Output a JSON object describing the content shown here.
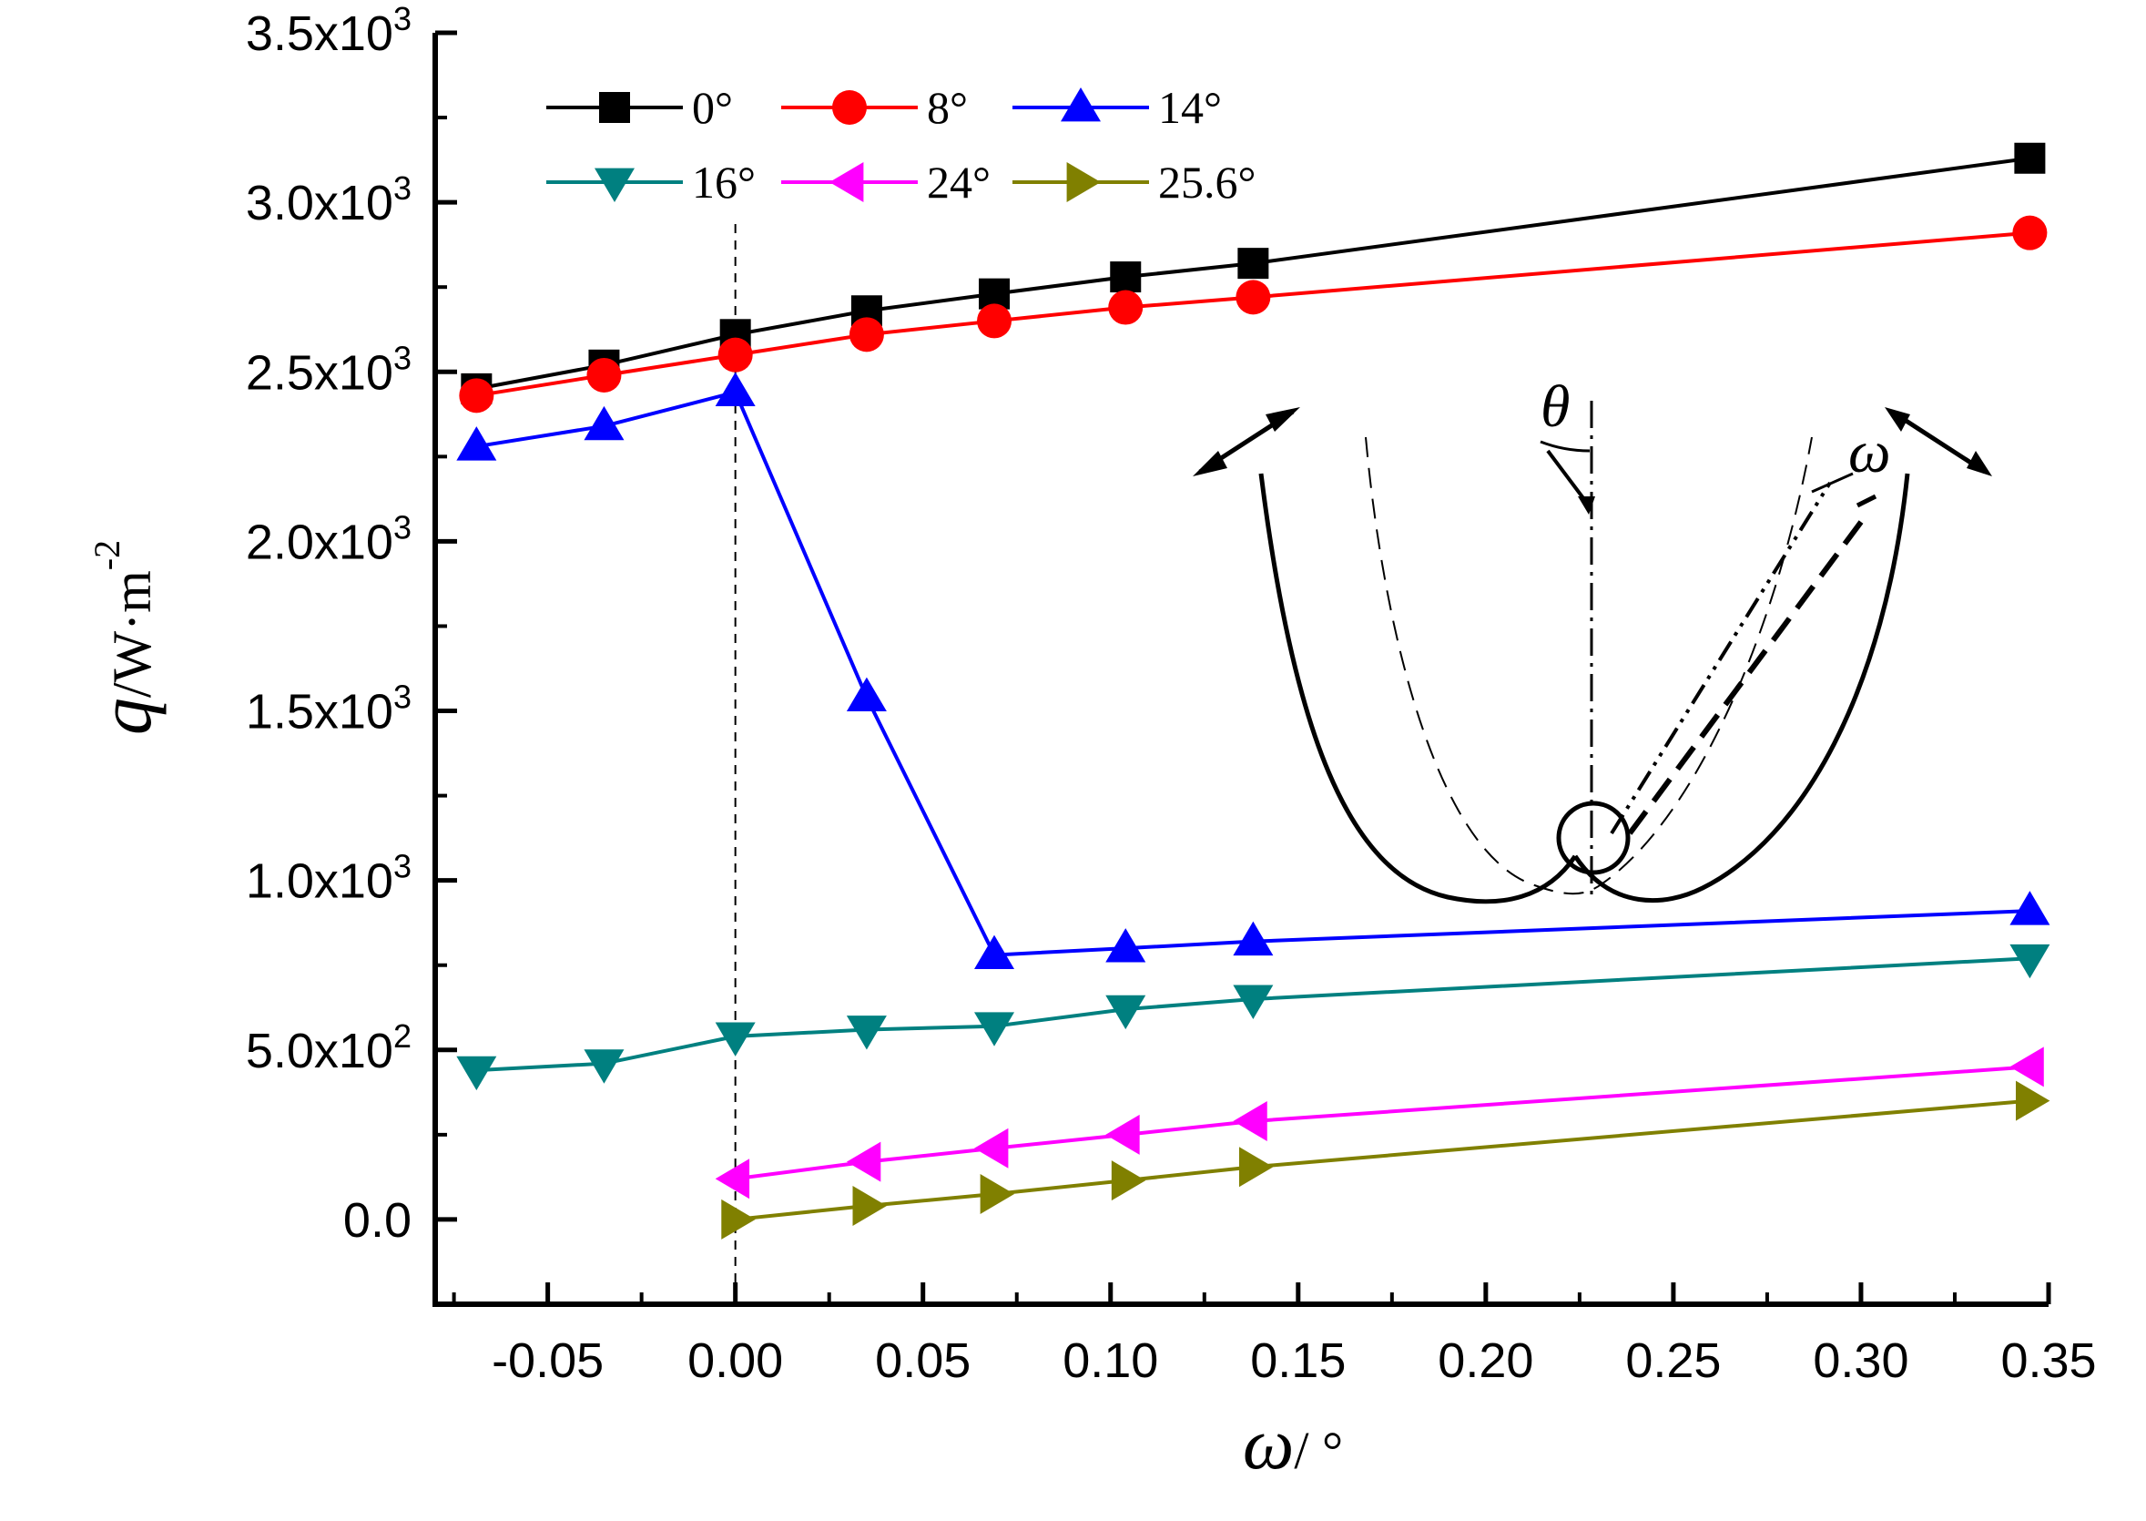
{
  "chart_data": {
    "type": "line",
    "title": "",
    "xlabel": "ω/ °",
    "ylabel": "q/W·m-2",
    "xlim": [
      -0.08,
      0.35
    ],
    "ylim": [
      -250,
      3500
    ],
    "x_ticks": [
      -0.05,
      0.0,
      0.05,
      0.1,
      0.15,
      0.2,
      0.25,
      0.3,
      0.35
    ],
    "x_tick_labels": [
      "-0.05",
      "0.00",
      "0.05",
      "0.10",
      "0.15",
      "0.20",
      "0.25",
      "0.30",
      "0.35"
    ],
    "y_ticks": [
      0,
      500,
      1000,
      1500,
      2000,
      2500,
      3000,
      3500
    ],
    "y_tick_labels": [
      {
        "mantissa": "0.0",
        "exp": ""
      },
      {
        "mantissa": "5.0x10",
        "exp": "2"
      },
      {
        "mantissa": "1.0x10",
        "exp": "3"
      },
      {
        "mantissa": "1.5x10",
        "exp": "3"
      },
      {
        "mantissa": "2.0x10",
        "exp": "3"
      },
      {
        "mantissa": "2.5x10",
        "exp": "3"
      },
      {
        "mantissa": "3.0x10",
        "exp": "3"
      },
      {
        "mantissa": "3.5x10",
        "exp": "3"
      }
    ],
    "reference_line_x": 0.0,
    "legend_position": "top-left",
    "series": [
      {
        "name": "0°",
        "color": "#000000",
        "marker": "square",
        "x": [
          -0.069,
          -0.035,
          0.0,
          0.035,
          0.069,
          0.104,
          0.138,
          0.345
        ],
        "y": [
          2450,
          2520,
          2610,
          2680,
          2730,
          2780,
          2820,
          3130
        ]
      },
      {
        "name": "8°",
        "color": "#ff0000",
        "marker": "circle",
        "x": [
          -0.069,
          -0.035,
          0.0,
          0.035,
          0.069,
          0.104,
          0.138,
          0.345
        ],
        "y": [
          2430,
          2490,
          2550,
          2610,
          2650,
          2690,
          2720,
          2910
        ]
      },
      {
        "name": "14°",
        "color": "#0000ff",
        "marker": "triangle-up",
        "x": [
          -0.069,
          -0.035,
          0.0,
          0.035,
          0.069,
          0.104,
          0.138,
          0.345
        ],
        "y": [
          2280,
          2340,
          2440,
          1540,
          780,
          800,
          820,
          910
        ]
      },
      {
        "name": "16°",
        "color": "#008080",
        "marker": "triangle-down",
        "x": [
          -0.069,
          -0.035,
          0.0,
          0.035,
          0.069,
          0.104,
          0.138,
          0.345
        ],
        "y": [
          440,
          460,
          540,
          560,
          570,
          620,
          650,
          770
        ]
      },
      {
        "name": "24°",
        "color": "#ff00ff",
        "marker": "triangle-left",
        "x": [
          0.0,
          0.035,
          0.069,
          0.104,
          0.138,
          0.345
        ],
        "y": [
          120,
          170,
          210,
          250,
          290,
          450
        ]
      },
      {
        "name": "25.6°",
        "color": "#808000",
        "marker": "triangle-right",
        "x": [
          0.0,
          0.035,
          0.069,
          0.104,
          0.138,
          0.345
        ],
        "y": [
          0,
          40,
          75,
          115,
          155,
          350
        ]
      }
    ],
    "inset": {
      "theta_label": "θ",
      "omega_label": "ω"
    }
  }
}
